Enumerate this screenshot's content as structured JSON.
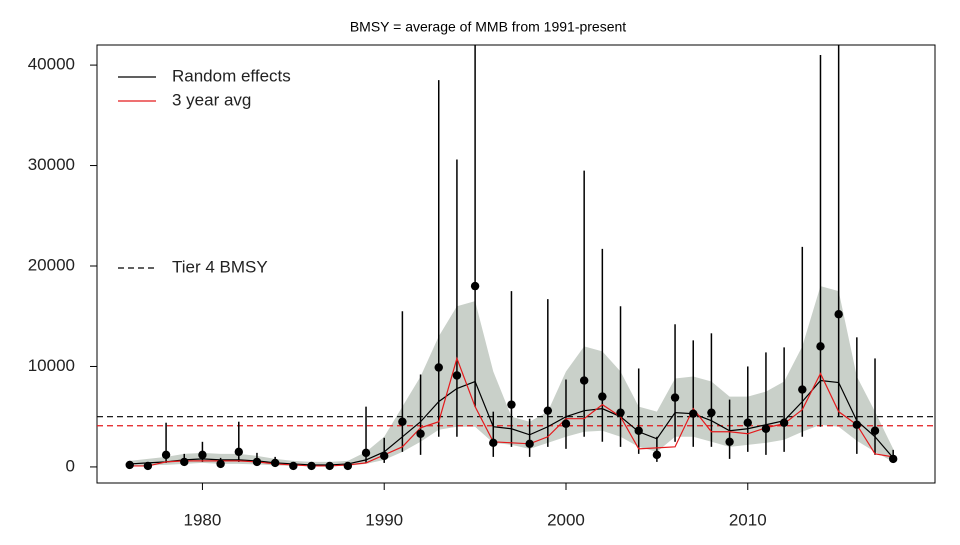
{
  "chart_data": {
    "type": "line",
    "title": "BMSY = average of MMB from 1991-present",
    "x": [
      1976,
      1977,
      1978,
      1979,
      1980,
      1981,
      1982,
      1983,
      1984,
      1985,
      1986,
      1987,
      1988,
      1989,
      1990,
      1991,
      1992,
      1993,
      1994,
      1995,
      1996,
      1997,
      1998,
      1999,
      2000,
      2001,
      2002,
      2003,
      2004,
      2005,
      2006,
      2007,
      2008,
      2009,
      2010,
      2011,
      2012,
      2013,
      2014,
      2015,
      2016,
      2017,
      2018
    ],
    "xlim": [
      1974.2,
      2020.3
    ],
    "ylim": [
      -1600,
      42000
    ],
    "xticks": [
      1980,
      1990,
      2000,
      2010
    ],
    "yticks": [
      0,
      10000,
      20000,
      30000,
      40000
    ],
    "band": {
      "color": "#c9d0c9",
      "lower": [
        100,
        150,
        200,
        300,
        400,
        300,
        300,
        250,
        150,
        100,
        80,
        80,
        100,
        300,
        700,
        1500,
        2500,
        3700,
        4000,
        4000,
        2400,
        2200,
        1800,
        2400,
        3000,
        3500,
        3600,
        3000,
        2000,
        1500,
        3000,
        3000,
        2500,
        2000,
        2200,
        2400,
        2700,
        3500,
        4200,
        4000,
        2600,
        1500,
        500
      ],
      "upper": [
        600,
        800,
        1000,
        1300,
        1400,
        1300,
        1300,
        1100,
        800,
        600,
        500,
        500,
        600,
        1500,
        3000,
        6000,
        9000,
        13000,
        16000,
        16500,
        9500,
        5000,
        4500,
        5500,
        9500,
        12000,
        11500,
        9500,
        6000,
        5500,
        8800,
        9000,
        8500,
        7000,
        7000,
        7500,
        8500,
        12000,
        18000,
        17500,
        9000,
        5500,
        1800
      ]
    },
    "series": [
      {
        "name": "Random effects",
        "color": "#000000",
        "values": [
          300,
          400,
          500,
          700,
          800,
          700,
          700,
          600,
          400,
          300,
          200,
          200,
          300,
          700,
          1500,
          3000,
          4500,
          6500,
          7800,
          8500,
          4000,
          3800,
          3200,
          4000,
          5000,
          5600,
          5800,
          5000,
          3500,
          2800,
          5400,
          5300,
          4600,
          3600,
          3800,
          4200,
          4600,
          6500,
          8600,
          8400,
          4600,
          3000,
          900
        ]
      },
      {
        "name": "3 year avg",
        "color": "#e41a1c",
        "values": [
          100,
          100,
          500,
          600,
          600,
          600,
          600,
          500,
          300,
          200,
          100,
          100,
          200,
          400,
          1200,
          2000,
          3900,
          4500,
          10800,
          6000,
          2500,
          2400,
          2300,
          3000,
          4800,
          4800,
          6200,
          5000,
          1800,
          1900,
          2000,
          5800,
          3500,
          3500,
          3300,
          3900,
          4300,
          5700,
          9300,
          5500,
          4200,
          1300,
          1000
        ]
      }
    ],
    "points": {
      "color": "#000000",
      "values": [
        200,
        100,
        1200,
        500,
        1200,
        300,
        1500,
        500,
        400,
        100,
        100,
        100,
        100,
        1400,
        1100,
        4500,
        3300,
        9900,
        9100,
        18000,
        2400,
        6200,
        2300,
        5600,
        4300,
        8600,
        7000,
        5400,
        3600,
        1200,
        6900,
        5300,
        5400,
        2500,
        4400,
        3800,
        4400,
        7700,
        12000,
        15200,
        4200,
        3600,
        800
      ],
      "lower": [
        50,
        30,
        400,
        200,
        500,
        100,
        500,
        200,
        150,
        30,
        30,
        30,
        30,
        400,
        400,
        1500,
        1200,
        3000,
        3000,
        6000,
        1000,
        2000,
        1000,
        2000,
        1800,
        3000,
        2500,
        2000,
        1300,
        500,
        2500,
        2000,
        2000,
        800,
        1500,
        1200,
        1500,
        3000,
        4000,
        5000,
        1300,
        1200,
        400
      ],
      "upper": [
        600,
        400,
        4400,
        1300,
        2500,
        900,
        4500,
        1400,
        1000,
        300,
        300,
        300,
        300,
        6000,
        2900,
        15500,
        9200,
        38500,
        30600,
        42000,
        5500,
        17500,
        4800,
        16700,
        8700,
        29500,
        21700,
        16000,
        9800,
        3000,
        14200,
        12600,
        13300,
        6700,
        10000,
        11400,
        11900,
        21900,
        41000,
        42000,
        12900,
        10800,
        1700
      ]
    },
    "hlines": [
      {
        "name": "Tier 4 BMSY",
        "value": 5000,
        "color": "#000000"
      },
      {
        "value": 4100,
        "color": "#e41a1c"
      }
    ]
  }
}
